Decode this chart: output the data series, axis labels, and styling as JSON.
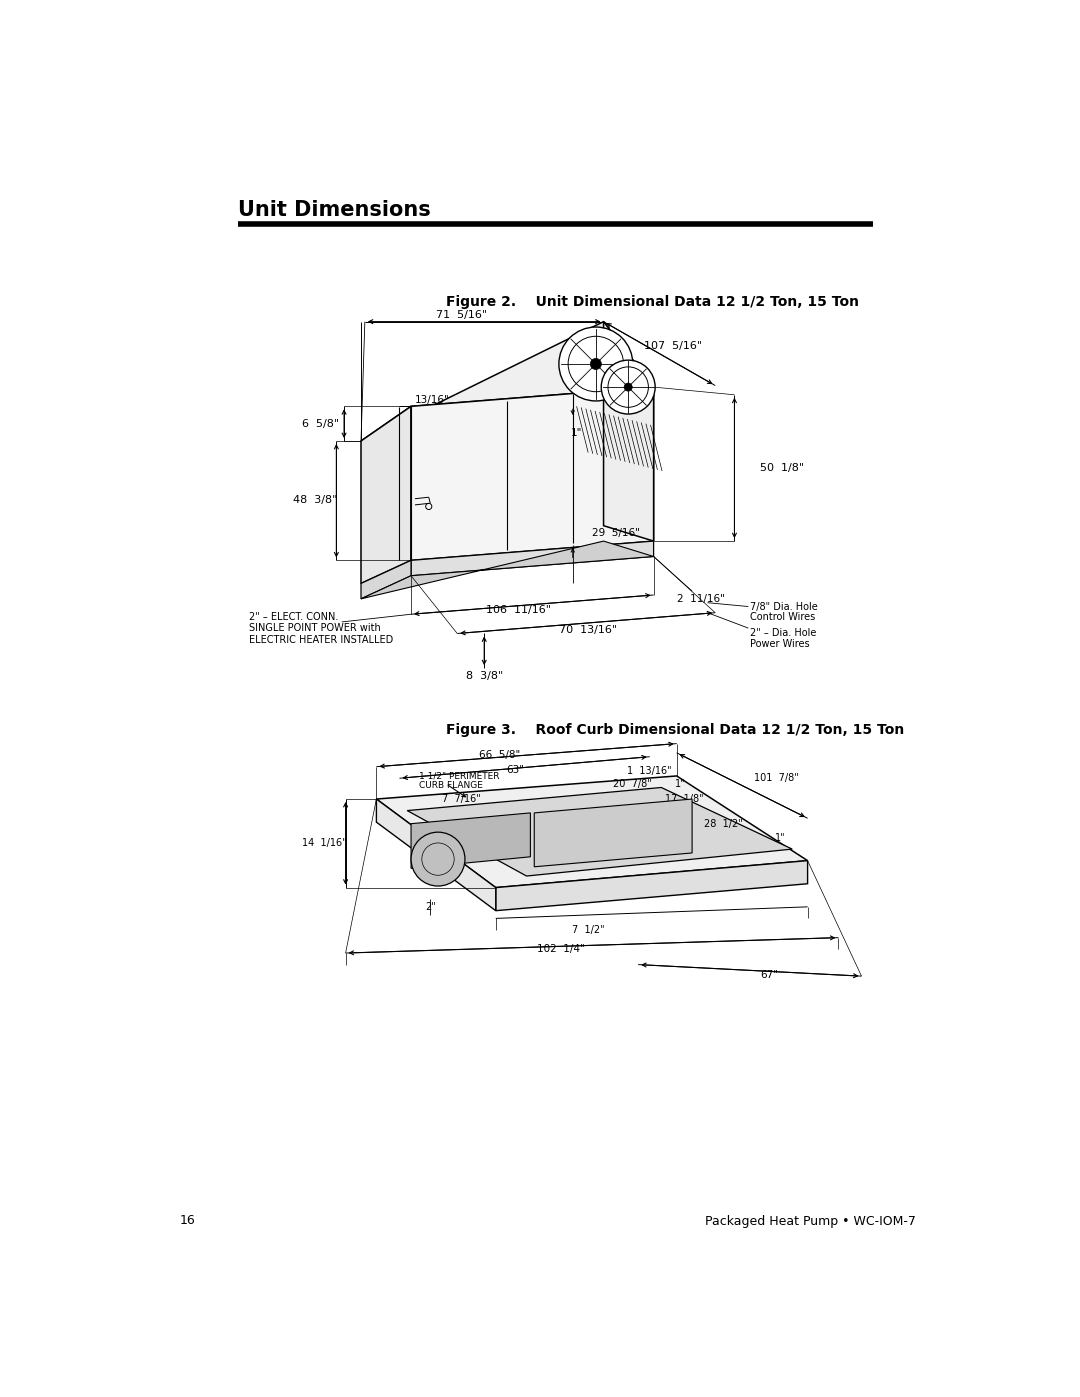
{
  "page_title": "Unit Dimensions",
  "page_number": "16",
  "footer_text": "Packaged Heat Pump • WC-IOM-7",
  "fig2_title": "Figure 2.    Unit Dimensional Data 12 1/2 Ton, 15 Ton",
  "fig3_title": "Figure 3.    Roof Curb Dimensional Data 12 1/2 Ton, 15 Ton",
  "background_color": "#ffffff",
  "line_color": "#000000",
  "text_color": "#000000"
}
